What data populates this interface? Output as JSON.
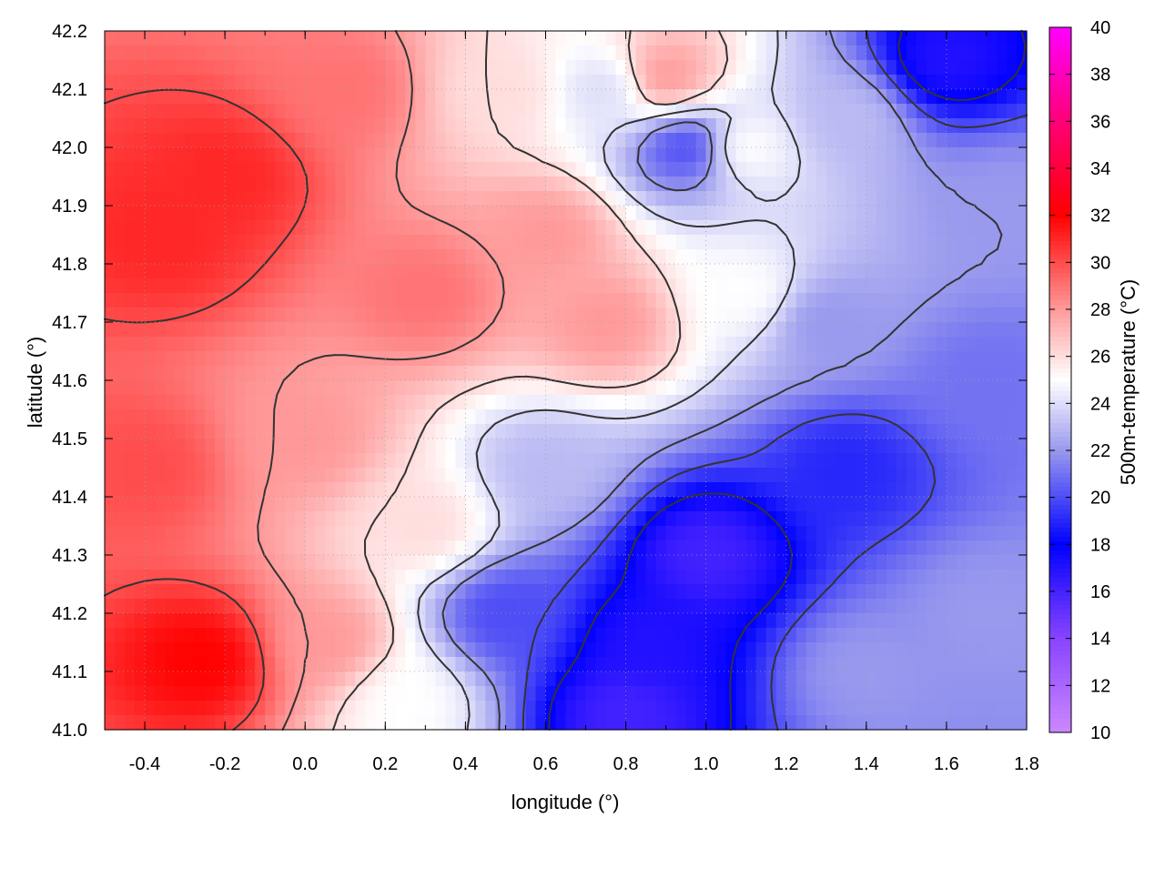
{
  "chart_data": {
    "type": "heatmap",
    "title": "",
    "xlabel": "longitude (°)",
    "ylabel": "latitude (°)",
    "colorbar_label": "500m-temperature (°C)",
    "xlim": [
      -0.5,
      1.8
    ],
    "ylim": [
      41.0,
      42.2
    ],
    "x_ticks": [
      "-0.4",
      "-0.2",
      "0.0",
      "0.2",
      "0.4",
      "0.6",
      "0.8",
      "1.0",
      "1.2",
      "1.4",
      "1.6",
      "1.8"
    ],
    "y_ticks": [
      "41.0",
      "41.1",
      "41.2",
      "41.3",
      "41.4",
      "41.5",
      "41.6",
      "41.7",
      "41.8",
      "41.9",
      "42.0",
      "42.1",
      "42.2"
    ],
    "colorbar_range": [
      10,
      40
    ],
    "colorbar_ticks": [
      "10",
      "12",
      "14",
      "16",
      "18",
      "20",
      "22",
      "24",
      "26",
      "28",
      "30",
      "32",
      "34",
      "36",
      "38",
      "40"
    ],
    "colormap": [
      {
        "value": 10,
        "color": "#cc88ff"
      },
      {
        "value": 14,
        "color": "#8844ff"
      },
      {
        "value": 18,
        "color": "#0000ff"
      },
      {
        "value": 22,
        "color": "#9999ee"
      },
      {
        "value": 25,
        "color": "#ffffff"
      },
      {
        "value": 28,
        "color": "#ff9999"
      },
      {
        "value": 32,
        "color": "#ff0000"
      },
      {
        "value": 36,
        "color": "#ff0077"
      },
      {
        "value": 40,
        "color": "#ff00ff"
      }
    ],
    "grid": true,
    "contours": true,
    "field_anchors": [
      {
        "lon": -0.35,
        "lat": 41.85,
        "t": 31
      },
      {
        "lon": -0.2,
        "lat": 41.95,
        "t": 31
      },
      {
        "lon": -0.25,
        "lat": 41.12,
        "t": 32
      },
      {
        "lon": -0.4,
        "lat": 41.45,
        "t": 30
      },
      {
        "lon": 0.0,
        "lat": 41.5,
        "t": 28
      },
      {
        "lon": 0.1,
        "lat": 42.1,
        "t": 29
      },
      {
        "lon": 0.3,
        "lat": 41.75,
        "t": 29
      },
      {
        "lon": 0.3,
        "lat": 41.35,
        "t": 26
      },
      {
        "lon": 0.6,
        "lat": 41.85,
        "t": 28
      },
      {
        "lon": 0.75,
        "lat": 41.7,
        "t": 28
      },
      {
        "lon": 0.5,
        "lat": 42.1,
        "t": 26
      },
      {
        "lon": 0.75,
        "lat": 42.1,
        "t": 24
      },
      {
        "lon": 0.9,
        "lat": 42.12,
        "t": 28
      },
      {
        "lon": 0.95,
        "lat": 42.0,
        "t": 20
      },
      {
        "lon": 1.1,
        "lat": 42.0,
        "t": 25
      },
      {
        "lon": 1.1,
        "lat": 41.75,
        "t": 25
      },
      {
        "lon": 1.3,
        "lat": 41.7,
        "t": 22
      },
      {
        "lon": 1.35,
        "lat": 42.05,
        "t": 23
      },
      {
        "lon": 1.6,
        "lat": 42.15,
        "t": 17
      },
      {
        "lon": 1.75,
        "lat": 41.9,
        "t": 22
      },
      {
        "lon": 1.7,
        "lat": 41.6,
        "t": 21
      },
      {
        "lon": 1.35,
        "lat": 41.45,
        "t": 19
      },
      {
        "lon": 1.0,
        "lat": 41.3,
        "t": 16
      },
      {
        "lon": 0.85,
        "lat": 41.15,
        "t": 17
      },
      {
        "lon": 0.8,
        "lat": 41.03,
        "t": 16
      },
      {
        "lon": 0.5,
        "lat": 41.2,
        "t": 20
      },
      {
        "lon": 0.6,
        "lat": 41.45,
        "t": 23
      },
      {
        "lon": 0.25,
        "lat": 41.05,
        "t": 25
      },
      {
        "lon": 1.4,
        "lat": 41.1,
        "t": 22
      },
      {
        "lon": 1.7,
        "lat": 41.2,
        "t": 22
      },
      {
        "lon": 0.05,
        "lat": 41.15,
        "t": 28
      }
    ]
  }
}
